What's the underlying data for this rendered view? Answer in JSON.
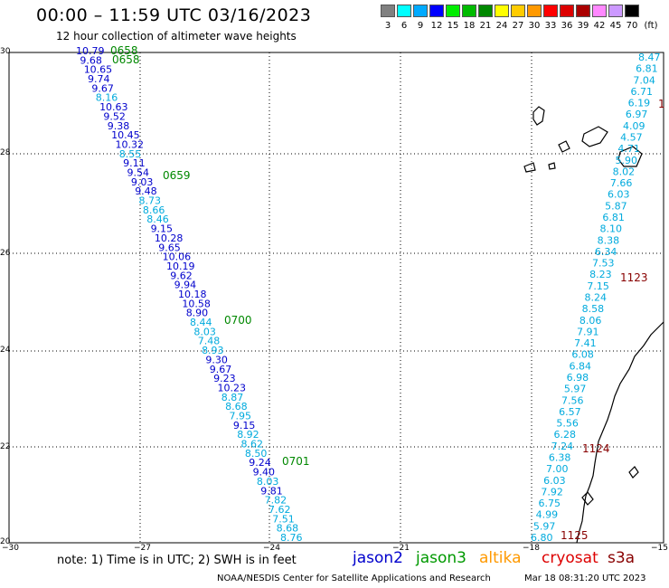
{
  "header": {
    "title": "00:00 – 11:59 UTC 03/16/2023",
    "subtitle": "12 hour collection of altimeter wave heights"
  },
  "legend": {
    "unit": "(ft)",
    "items": [
      {
        "label": "3",
        "color": "#808080"
      },
      {
        "label": "6",
        "color": "#00ffff"
      },
      {
        "label": "9",
        "color": "#00aaff"
      },
      {
        "label": "12",
        "color": "#0000ff"
      },
      {
        "label": "15",
        "color": "#00ee00"
      },
      {
        "label": "18",
        "color": "#00bb00"
      },
      {
        "label": "21",
        "color": "#008800"
      },
      {
        "label": "24",
        "color": "#ffff00"
      },
      {
        "label": "27",
        "color": "#ffcc00"
      },
      {
        "label": "30",
        "color": "#ff9900"
      },
      {
        "label": "33",
        "color": "#ff0000"
      },
      {
        "label": "36",
        "color": "#dd0000"
      },
      {
        "label": "39",
        "color": "#aa0000"
      },
      {
        "label": "42",
        "color": "#ff88ff"
      },
      {
        "label": "45",
        "color": "#cc99ff"
      },
      {
        "label": "70",
        "color": "#000000"
      }
    ]
  },
  "axes": {
    "lat_labels": [
      "30",
      "28",
      "26",
      "24",
      "22",
      "20"
    ],
    "lon_labels": [
      "−30",
      "−27",
      "−24",
      "−21",
      "−18",
      "−15"
    ]
  },
  "map": {
    "track_west": [
      {
        "v": "10.79",
        "c": "#0000cc"
      },
      {
        "v": "9.68",
        "c": "#0000cc"
      },
      {
        "v": "10.65",
        "c": "#0000cc"
      },
      {
        "v": "9.74",
        "c": "#0000cc"
      },
      {
        "v": "9.67",
        "c": "#0000cc"
      },
      {
        "v": "8.16",
        "c": "#00aadd"
      },
      {
        "v": "10.63",
        "c": "#0000cc"
      },
      {
        "v": "9.52",
        "c": "#0000cc"
      },
      {
        "v": "9.38",
        "c": "#0000cc"
      },
      {
        "v": "10.45",
        "c": "#0000cc"
      },
      {
        "v": "10.32",
        "c": "#0000cc"
      },
      {
        "v": "8.55",
        "c": "#00aadd"
      },
      {
        "v": "9.11",
        "c": "#0000cc"
      },
      {
        "v": "9.54",
        "c": "#0000cc"
      },
      {
        "v": "9.03",
        "c": "#0000cc"
      },
      {
        "v": "9.48",
        "c": "#0000cc"
      },
      {
        "v": "8.73",
        "c": "#00aadd"
      },
      {
        "v": "8.66",
        "c": "#00aadd"
      },
      {
        "v": "8.46",
        "c": "#00aadd"
      },
      {
        "v": "9.15",
        "c": "#0000cc"
      },
      {
        "v": "10.28",
        "c": "#0000cc"
      },
      {
        "v": "9.65",
        "c": "#0000cc"
      },
      {
        "v": "10.06",
        "c": "#0000cc"
      },
      {
        "v": "10.19",
        "c": "#0000cc"
      },
      {
        "v": "9.62",
        "c": "#0000cc"
      },
      {
        "v": "9.94",
        "c": "#0000cc"
      },
      {
        "v": "10.18",
        "c": "#0000cc"
      },
      {
        "v": "10.58",
        "c": "#0000cc"
      },
      {
        "v": "8.90",
        "c": "#0000cc"
      },
      {
        "v": "8.44",
        "c": "#00aadd"
      },
      {
        "v": "8.03",
        "c": "#00aadd"
      },
      {
        "v": "7.48",
        "c": "#00aadd"
      },
      {
        "v": "8.93",
        "c": "#00aadd"
      },
      {
        "v": "9.30",
        "c": "#0000cc"
      },
      {
        "v": "9.67",
        "c": "#0000cc"
      },
      {
        "v": "9.23",
        "c": "#0000cc"
      },
      {
        "v": "10.23",
        "c": "#0000cc"
      },
      {
        "v": "8.87",
        "c": "#00aadd"
      },
      {
        "v": "8.68",
        "c": "#00aadd"
      },
      {
        "v": "7.95",
        "c": "#00aadd"
      },
      {
        "v": "9.15",
        "c": "#0000cc"
      },
      {
        "v": "8.92",
        "c": "#00aadd"
      },
      {
        "v": "8.62",
        "c": "#00aadd"
      },
      {
        "v": "8.50",
        "c": "#00aadd"
      },
      {
        "v": "9.24",
        "c": "#0000cc"
      },
      {
        "v": "9.40",
        "c": "#0000cc"
      },
      {
        "v": "8.03",
        "c": "#00aadd"
      },
      {
        "v": "9.81",
        "c": "#0000cc"
      },
      {
        "v": "7.82",
        "c": "#00aadd"
      },
      {
        "v": "7.62",
        "c": "#00aadd"
      },
      {
        "v": "7.51",
        "c": "#00aadd"
      },
      {
        "v": "8.68",
        "c": "#00aadd"
      },
      {
        "v": "8.76",
        "c": "#00aadd"
      }
    ],
    "track_east": [
      {
        "v": "8.47",
        "c": "#00aadd"
      },
      {
        "v": "6.81",
        "c": "#00aadd"
      },
      {
        "v": "7.04",
        "c": "#00aadd"
      },
      {
        "v": "6.71",
        "c": "#00aadd"
      },
      {
        "v": "6.19",
        "c": "#00aadd"
      },
      {
        "v": "6.97",
        "c": "#00aadd"
      },
      {
        "v": "4.09",
        "c": "#00aadd"
      },
      {
        "v": "4.57",
        "c": "#00aadd"
      },
      {
        "v": "4.71",
        "c": "#00aadd"
      },
      {
        "v": "5.90",
        "c": "#00aadd"
      },
      {
        "v": "8.02",
        "c": "#00aadd"
      },
      {
        "v": "7.66",
        "c": "#00aadd"
      },
      {
        "v": "6.03",
        "c": "#00aadd"
      },
      {
        "v": "5.87",
        "c": "#00aadd"
      },
      {
        "v": "6.81",
        "c": "#00aadd"
      },
      {
        "v": "8.10",
        "c": "#00aadd"
      },
      {
        "v": "8.38",
        "c": "#00aadd"
      },
      {
        "v": "6.34",
        "c": "#00aadd"
      },
      {
        "v": "7.53",
        "c": "#00aadd"
      },
      {
        "v": "8.23",
        "c": "#00aadd"
      },
      {
        "v": "7.15",
        "c": "#00aadd"
      },
      {
        "v": "8.24",
        "c": "#00aadd"
      },
      {
        "v": "8.58",
        "c": "#00aadd"
      },
      {
        "v": "8.06",
        "c": "#00aadd"
      },
      {
        "v": "7.91",
        "c": "#00aadd"
      },
      {
        "v": "7.41",
        "c": "#00aadd"
      },
      {
        "v": "6.08",
        "c": "#00aadd"
      },
      {
        "v": "6.84",
        "c": "#00aadd"
      },
      {
        "v": "6.98",
        "c": "#00aadd"
      },
      {
        "v": "5.97",
        "c": "#00aadd"
      },
      {
        "v": "7.56",
        "c": "#00aadd"
      },
      {
        "v": "6.57",
        "c": "#00aadd"
      },
      {
        "v": "5.56",
        "c": "#00aadd"
      },
      {
        "v": "6.28",
        "c": "#00aadd"
      },
      {
        "v": "7.24",
        "c": "#00aadd"
      },
      {
        "v": "6.38",
        "c": "#00aadd"
      },
      {
        "v": "7.00",
        "c": "#00aadd"
      },
      {
        "v": "6.03",
        "c": "#00aadd"
      },
      {
        "v": "7.92",
        "c": "#00aadd"
      },
      {
        "v": "6.75",
        "c": "#00aadd"
      },
      {
        "v": "4.99",
        "c": "#00aadd"
      },
      {
        "v": "5.97",
        "c": "#00aadd"
      },
      {
        "v": "6.80",
        "c": "#00aadd"
      }
    ],
    "time_labels": [
      {
        "text": "0658",
        "color": "#008800"
      },
      {
        "text": "0658",
        "color": "#008800"
      },
      {
        "text": "0659",
        "color": "#008800"
      },
      {
        "text": "0700",
        "color": "#008800"
      },
      {
        "text": "0701",
        "color": "#008800"
      },
      {
        "text": "1",
        "color": "#880000"
      },
      {
        "text": "1123",
        "color": "#880000"
      },
      {
        "text": "1124",
        "color": "#880000"
      },
      {
        "text": "1125",
        "color": "#880000"
      }
    ]
  },
  "footer": {
    "note": "note:  1) Time is in UTC;  2) SWH is in feet",
    "satellites": [
      {
        "name": "jason2",
        "color": "#0000cc"
      },
      {
        "name": "jason3",
        "color": "#009900"
      },
      {
        "name": "altika",
        "color": "#ff9900"
      },
      {
        "name": "cryosat",
        "color": "#dd0000"
      },
      {
        "name": "s3a",
        "color": "#880000"
      }
    ],
    "credit": "NOAA/NESDIS Center for Satellite Applications and Research",
    "timestamp": "Mar 18 08:31:20 UTC 2023"
  }
}
